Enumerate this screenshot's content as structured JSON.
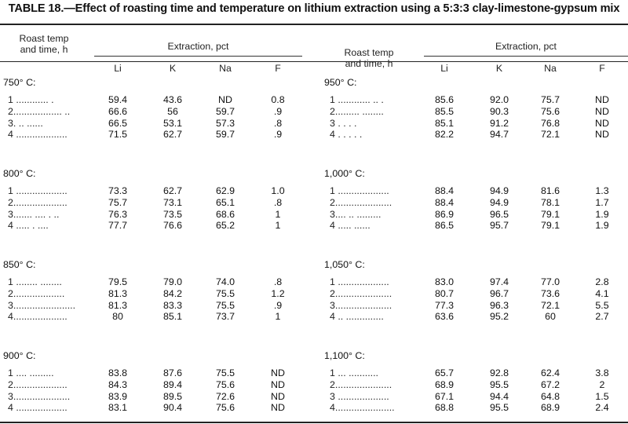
{
  "title": "TABLE 18.—Effect of roasting time and temperature on lithium extraction using a 5:3:3 clay-limestone-gypsum mix",
  "header": {
    "roast_line1": "Roast temp",
    "roast_line2": "and time, h",
    "extraction": "Extraction, pct",
    "columns": [
      "Li",
      "K",
      "Na",
      "F"
    ]
  },
  "panels": [
    {
      "sections": [
        {
          "temp": "750° C:",
          "rows": [
            {
              "label": "1 ............ .",
              "values": [
                "59.4",
                "43.6",
                "ND",
                "0.8"
              ]
            },
            {
              "label": "2.................. ..",
              "values": [
                "66.6",
                "56",
                "59.7",
                ".9"
              ]
            },
            {
              "label": "3.      ..  ......",
              "values": [
                "66.5",
                "53.1",
                "57.3",
                ".8"
              ]
            },
            {
              "label": "4 ...................",
              "values": [
                "71.5",
                "62.7",
                "59.7",
                ".9"
              ]
            }
          ]
        },
        {
          "temp": "800° C:",
          "rows": [
            {
              "label": "1 ...................",
              "values": [
                "73.3",
                "62.7",
                "62.9",
                "1.0"
              ]
            },
            {
              "label": "2....................",
              "values": [
                "75.7",
                "73.1",
                "65.1",
                ".8"
              ]
            },
            {
              "label": "3.......  .... . ..",
              "values": [
                "76.3",
                "73.5",
                "68.6",
                "1"
              ]
            },
            {
              "label": "4      ..... . ....",
              "values": [
                "77.7",
                "76.6",
                "65.2",
                "1"
              ]
            }
          ]
        },
        {
          "temp": "850° C:",
          "rows": [
            {
              "label": "1 ........ ........",
              "values": [
                "79.5",
                "79.0",
                "74.0",
                ".8"
              ]
            },
            {
              "label": "2...................",
              "values": [
                "81.3",
                "84.2",
                "75.5",
                "1.2"
              ]
            },
            {
              "label": "3.......................",
              "values": [
                "81.3",
                "83.3",
                "75.5",
                ".9"
              ]
            },
            {
              "label": "4....................",
              "values": [
                "80",
                "85.1",
                "73.7",
                "1"
              ]
            }
          ]
        },
        {
          "temp": "900° C:",
          "rows": [
            {
              "label": "1 ....  .........",
              "values": [
                "83.8",
                "87.6",
                "75.5",
                "ND"
              ]
            },
            {
              "label": "2....................",
              "values": [
                "84.3",
                "89.4",
                "75.6",
                "ND"
              ]
            },
            {
              "label": "3.....................",
              "values": [
                "83.9",
                "89.5",
                "72.6",
                "ND"
              ]
            },
            {
              "label": "4 ...................",
              "values": [
                "83.1",
                "90.4",
                "75.6",
                "ND"
              ]
            }
          ]
        }
      ]
    },
    {
      "sections": [
        {
          "temp": "950° C:",
          "rows": [
            {
              "label": "1    ............  ..  .",
              "values": [
                "85.6",
                "92.0",
                "75.7",
                "ND"
              ]
            },
            {
              "label": "2......... ........",
              "values": [
                "85.5",
                "90.3",
                "75.6",
                "ND"
              ]
            },
            {
              "label": "3       .     .  . .",
              "values": [
                "85.1",
                "91.2",
                "76.8",
                "ND"
              ]
            },
            {
              "label": "4   .        . . . .",
              "values": [
                "82.2",
                "94.7",
                "72.1",
                "ND"
              ]
            }
          ]
        },
        {
          "temp": "1,000° C:",
          "rows": [
            {
              "label": "1 ...................",
              "values": [
                "88.4",
                "94.9",
                "81.6",
                "1.3"
              ]
            },
            {
              "label": "2.....................",
              "values": [
                "88.4",
                "94.9",
                "78.1",
                "1.7"
              ]
            },
            {
              "label": "3.... .. .........",
              "values": [
                "86.9",
                "96.5",
                "79.1",
                "1.9"
              ]
            },
            {
              "label": "4   ..... ......",
              "values": [
                "86.5",
                "95.7",
                "79.1",
                "1.9"
              ]
            }
          ]
        },
        {
          "temp": "1,050° C:",
          "rows": [
            {
              "label": "1 ...................",
              "values": [
                "83.0",
                "97.4",
                "77.0",
                "2.8"
              ]
            },
            {
              "label": "2.....................",
              "values": [
                "80.7",
                "96.7",
                "73.6",
                "4.1"
              ]
            },
            {
              "label": "3.....................",
              "values": [
                "77.3",
                "96.3",
                "72.1",
                "5.5"
              ]
            },
            {
              "label": "4  .. ..............",
              "values": [
                "63.6",
                "95.2",
                "60",
                "2.7"
              ]
            }
          ]
        },
        {
          "temp": "1,100° C:",
          "rows": [
            {
              "label": "1 ... ...........",
              "values": [
                "65.7",
                "92.8",
                "62.4",
                "3.8"
              ]
            },
            {
              "label": "2.....................",
              "values": [
                "68.9",
                "95.5",
                "67.2",
                "2"
              ]
            },
            {
              "label": "3 ...................",
              "values": [
                "67.1",
                "94.4",
                "64.8",
                "1.5"
              ]
            },
            {
              "label": "4......................",
              "values": [
                "68.8",
                "95.5",
                "68.9",
                "2.4"
              ]
            }
          ]
        }
      ]
    }
  ]
}
